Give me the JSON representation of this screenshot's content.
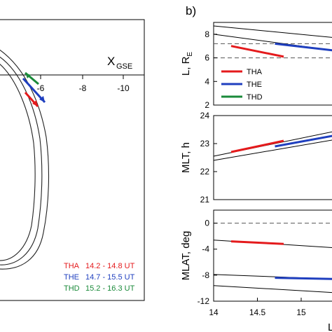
{
  "panel_a": {
    "x_axis_label": "X",
    "x_axis_sub": "GSE",
    "tick_labels": [
      "-6",
      "-8",
      "-10"
    ],
    "legend": [
      {
        "name": "THA",
        "range": "14.2 - 14.8 UT",
        "color": "#e41a1c"
      },
      {
        "name": "THE",
        "range": "14.7 - 15.5 UT",
        "color": "#1f3fbf"
      },
      {
        "name": "THD",
        "range": "15.2 - 16.3 UT",
        "color": "#1a8a3a"
      }
    ]
  },
  "panel_b": {
    "panel_label": "b)",
    "x_ticks": [
      "14",
      "14.5",
      "15"
    ],
    "x_axis_label_fragment": "L",
    "legend": [
      {
        "name": "THA",
        "color": "#e41a1c"
      },
      {
        "name": "THE",
        "color": "#1f3fbf"
      },
      {
        "name": "THD",
        "color": "#1a8a3a"
      }
    ]
  },
  "chart_data": [
    {
      "type": "line",
      "title": "",
      "xlabel": "X_GSE",
      "ylabel": "",
      "xticks": [
        -6,
        -8,
        -10
      ],
      "series": [
        {
          "name": "THA",
          "time_range": "14.2 - 14.8 UT"
        },
        {
          "name": "THE",
          "time_range": "14.7 - 15.5 UT"
        },
        {
          "name": "THD",
          "time_range": "15.2 - 16.3 UT"
        }
      ]
    },
    {
      "type": "line",
      "ylabel": "L, R_E",
      "ylabel_main": "L, R",
      "ylabel_sub": "E",
      "ylim": [
        2,
        9
      ],
      "yticks": [
        2,
        4,
        6,
        8
      ],
      "xlim": [
        14,
        15.4
      ],
      "dashed_levels": [
        6,
        7.2
      ],
      "black_lines": [
        {
          "x": [
            14,
            15.4
          ],
          "y": [
            8.7,
            7.7
          ]
        },
        {
          "x": [
            14,
            15.4
          ],
          "y": [
            8.0,
            6.6
          ]
        }
      ],
      "series": [
        {
          "name": "THA",
          "x": [
            14.2,
            14.8
          ],
          "y": [
            7.0,
            6.1
          ]
        },
        {
          "name": "THE",
          "x": [
            14.7,
            15.4
          ],
          "y": [
            7.2,
            6.6
          ]
        }
      ]
    },
    {
      "type": "line",
      "ylabel": "MLT, h",
      "ylim": [
        21,
        24
      ],
      "yticks": [
        21,
        22,
        23,
        24
      ],
      "xlim": [
        14,
        15.4
      ],
      "black_lines": [
        {
          "x": [
            14,
            15.4
          ],
          "y": [
            22.55,
            23.45
          ]
        },
        {
          "x": [
            14,
            15.4
          ],
          "y": [
            22.4,
            23.15
          ]
        }
      ],
      "series": [
        {
          "name": "THA",
          "x": [
            14.2,
            14.8
          ],
          "y": [
            22.7,
            23.1
          ]
        },
        {
          "name": "THE",
          "x": [
            14.7,
            15.4
          ],
          "y": [
            22.9,
            23.3
          ]
        }
      ]
    },
    {
      "type": "line",
      "ylabel": "MLAT, deg",
      "ylim": [
        -12,
        2
      ],
      "yticks": [
        0,
        -4,
        -8,
        -12
      ],
      "xlim": [
        14,
        15.4
      ],
      "dashed_levels": [
        0
      ],
      "black_lines": [
        {
          "x": [
            14,
            15.4
          ],
          "y": [
            -2.6,
            -3.8
          ]
        },
        {
          "x": [
            14,
            15.4
          ],
          "y": [
            -7.9,
            -8.6
          ]
        },
        {
          "x": [
            14,
            15.4
          ],
          "y": [
            -9.6,
            -10.7
          ]
        }
      ],
      "series": [
        {
          "name": "THA",
          "x": [
            14.2,
            14.8
          ],
          "y": [
            -2.8,
            -3.2
          ]
        },
        {
          "name": "THE",
          "x": [
            14.7,
            15.4
          ],
          "y": [
            -8.4,
            -8.6
          ]
        }
      ]
    }
  ]
}
